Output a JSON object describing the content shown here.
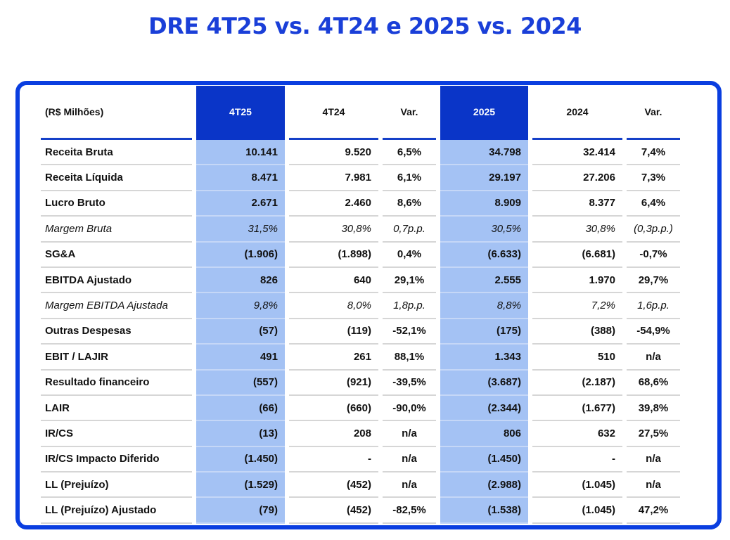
{
  "title": "DRE 4T25 vs. 4T24 e 2025 vs. 2024",
  "table": {
    "headers": [
      "(R$ Milhões)",
      "4T25",
      "4T24",
      "Var.",
      "2025",
      "2024",
      "Var."
    ],
    "rows": [
      {
        "label": "Receita Bruta",
        "italic": false,
        "values": [
          "10.141",
          "9.520",
          "6,5%",
          "34.798",
          "32.414",
          "7,4%"
        ]
      },
      {
        "label": "Receita Líquida",
        "italic": false,
        "values": [
          "8.471",
          "7.981",
          "6,1%",
          "29.197",
          "27.206",
          "7,3%"
        ]
      },
      {
        "label": "Lucro Bruto",
        "italic": false,
        "values": [
          "2.671",
          "2.460",
          "8,6%",
          "8.909",
          "8.377",
          "6,4%"
        ]
      },
      {
        "label": "Margem Bruta",
        "italic": true,
        "values": [
          "31,5%",
          "30,8%",
          "0,7p.p.",
          "30,5%",
          "30,8%",
          "(0,3p.p.)"
        ]
      },
      {
        "label": "SG&A",
        "italic": false,
        "values": [
          "(1.906)",
          "(1.898)",
          "0,4%",
          "(6.633)",
          "(6.681)",
          "-0,7%"
        ]
      },
      {
        "label": "EBITDA Ajustado",
        "italic": false,
        "values": [
          "826",
          "640",
          "29,1%",
          "2.555",
          "1.970",
          "29,7%"
        ]
      },
      {
        "label": "Margem EBITDA Ajustada",
        "italic": true,
        "values": [
          "9,8%",
          "8,0%",
          "1,8p.p.",
          "8,8%",
          "7,2%",
          "1,6p.p."
        ]
      },
      {
        "label": "Outras Despesas",
        "italic": false,
        "values": [
          "(57)",
          "(119)",
          "-52,1%",
          "(175)",
          "(388)",
          "-54,9%"
        ]
      },
      {
        "label": "EBIT / LAJIR",
        "italic": false,
        "values": [
          "491",
          "261",
          "88,1%",
          "1.343",
          "510",
          "n/a"
        ]
      },
      {
        "label": "Resultado financeiro",
        "italic": false,
        "values": [
          "(557)",
          "(921)",
          "-39,5%",
          "(3.687)",
          "(2.187)",
          "68,6%"
        ]
      },
      {
        "label": "LAIR",
        "italic": false,
        "values": [
          "(66)",
          "(660)",
          "-90,0%",
          "(2.344)",
          "(1.677)",
          "39,8%"
        ]
      },
      {
        "label": "IR/CS",
        "italic": false,
        "values": [
          "(13)",
          "208",
          "n/a",
          "806",
          "632",
          "27,5%"
        ]
      },
      {
        "label": "IR/CS Impacto Diferido",
        "italic": false,
        "values": [
          "(1.450)",
          "-",
          "n/a",
          "(1.450)",
          "-",
          "n/a"
        ]
      },
      {
        "label": "LL (Prejuízo)",
        "italic": false,
        "values": [
          "(1.529)",
          "(452)",
          "n/a",
          "(2.988)",
          "(1.045)",
          "n/a"
        ]
      },
      {
        "label": "LL (Prejuízo) Ajustado",
        "italic": false,
        "values": [
          "(79)",
          "(452)",
          "-82,5%",
          "(1.538)",
          "(1.045)",
          "47,2%"
        ]
      }
    ]
  },
  "colors": {
    "accent": "#0a35c8",
    "highlight": "#a4c2f4",
    "title": "#1a3fd8"
  }
}
